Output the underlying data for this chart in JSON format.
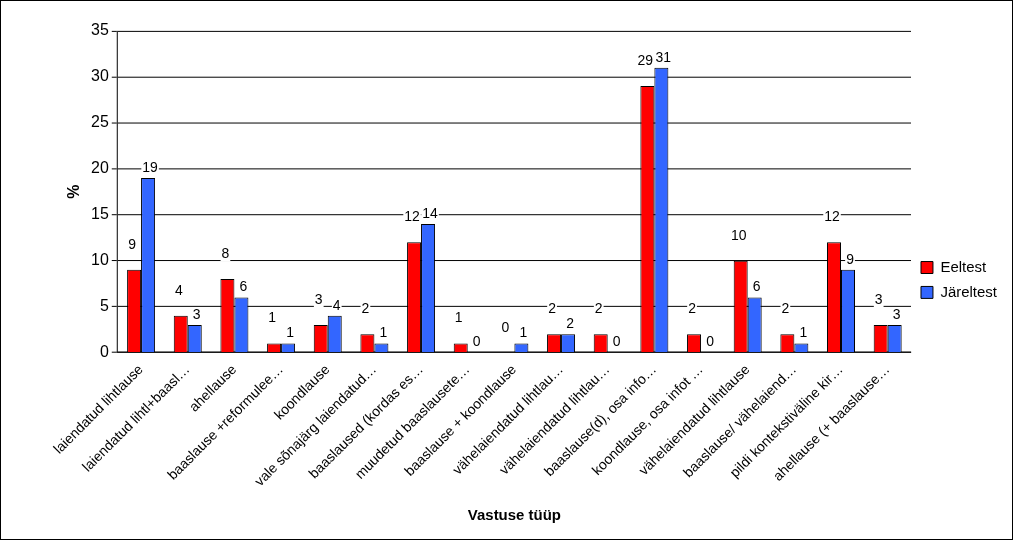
{
  "chart_data": {
    "type": "bar",
    "xlabel": "Vastuse tüüp",
    "ylabel": "%",
    "categories": [
      "laiendatud lihtlause",
      "laiendatud lihtl+baasl…",
      "ahellause",
      "baaslause +reformulee…",
      "koondlause",
      "vale sõnajärg laiendatud…",
      "baaslaused (kordas es…",
      "muudetud baaslausete…",
      "baaslause + koondlause",
      "vähelaiendatud lihtlau…",
      "vähelaiendatud lihtlau…",
      "baaslause(d), osa info…",
      "koondlause, osa infot …",
      "vähelaiendatud lihtlause",
      "baaslause/ vähelaiend…",
      "pildi kontekstiväline kir…",
      "ahellause (+ baaslause…"
    ],
    "series": [
      {
        "name": "Eeltest",
        "color": "#ff0000",
        "values": [
          9,
          4,
          8,
          1,
          3,
          2,
          12,
          1,
          0,
          2,
          2,
          29,
          2,
          10,
          2,
          12,
          3
        ]
      },
      {
        "name": "Järeltest",
        "color": "#3366ff",
        "values": [
          19,
          3,
          6,
          1,
          4,
          1,
          14,
          0,
          1,
          2,
          0,
          31,
          0,
          6,
          1,
          9,
          3
        ]
      }
    ],
    "ylim": [
      0,
      35
    ],
    "yticks": [
      0,
      5,
      10,
      15,
      20,
      25,
      30,
      35
    ],
    "grid": "y",
    "legend": "right",
    "data_labels": true
  }
}
